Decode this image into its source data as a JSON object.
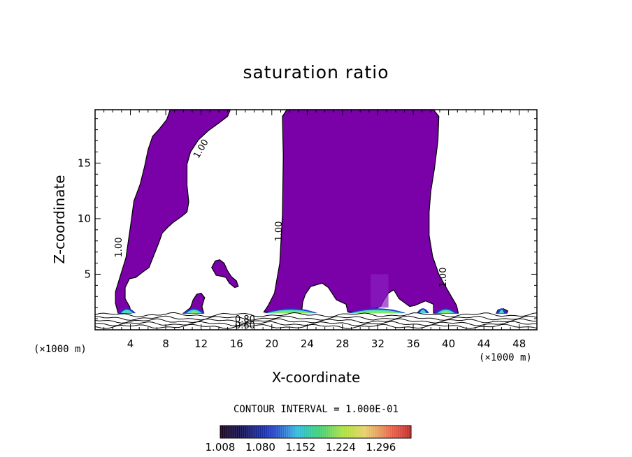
{
  "chart_data": {
    "type": "contour",
    "title": "saturation ratio",
    "xlabel": "X-coordinate",
    "ylabel": "Z-coordinate",
    "x_unit_label": "(×1000 m)",
    "x_unit_label_right": "(×1000 m)",
    "xlim": [
      0,
      50
    ],
    "ylim": [
      0,
      19.8
    ],
    "x_ticks": [
      4,
      8,
      12,
      16,
      20,
      24,
      28,
      32,
      36,
      40,
      44,
      48
    ],
    "y_ticks": [
      5,
      10,
      15
    ],
    "contour_interval_text": "CONTOUR INTERVAL = 1.000E-01",
    "contour_labels": [
      "1.00",
      "1.00",
      "1.00",
      "1.00",
      "0.80",
      "0.60"
    ],
    "colorbar": {
      "tick_labels": [
        "1.008",
        "1.080",
        "1.152",
        "1.224",
        "1.296"
      ],
      "min": 1.008,
      "max": 1.35
    },
    "colors": {
      "fill": "#7a00a8",
      "hot_band": "#49d9c6",
      "hot_core": "#7fe86a",
      "low_edge": "#2335c8"
    },
    "regions": [
      {
        "name": "left-plume",
        "shape": [
          [
            8.5,
            19.8
          ],
          [
            15.3,
            19.8
          ],
          [
            15.0,
            19.2
          ],
          [
            14.0,
            18.6
          ],
          [
            12.8,
            17.9
          ],
          [
            11.7,
            17.1
          ],
          [
            10.8,
            16.0
          ],
          [
            10.4,
            14.9
          ],
          [
            10.4,
            13.0
          ],
          [
            10.6,
            11.5
          ],
          [
            10.4,
            10.6
          ],
          [
            9.8,
            10.2
          ],
          [
            8.9,
            9.7
          ],
          [
            8.2,
            9.2
          ],
          [
            7.6,
            8.7
          ],
          [
            7.2,
            7.8
          ],
          [
            6.6,
            6.6
          ],
          [
            6.1,
            5.6
          ],
          [
            5.4,
            5.2
          ],
          [
            4.6,
            4.7
          ],
          [
            3.9,
            4.6
          ],
          [
            3.4,
            3.8
          ],
          [
            3.4,
            2.8
          ],
          [
            3.9,
            2.1
          ],
          [
            4.1,
            1.5
          ],
          [
            2.6,
            1.5
          ],
          [
            2.3,
            2.4
          ],
          [
            2.3,
            3.4
          ],
          [
            2.8,
            4.7
          ],
          [
            3.5,
            6.5
          ],
          [
            4.0,
            9.3
          ],
          [
            4.4,
            11.6
          ],
          [
            5.1,
            13.1
          ],
          [
            5.6,
            14.7
          ],
          [
            6.0,
            16.2
          ],
          [
            6.5,
            17.4
          ],
          [
            7.3,
            18.1
          ],
          [
            8.1,
            18.9
          ]
        ]
      },
      {
        "name": "central-plume",
        "shape": [
          [
            21.2,
            19.2
          ],
          [
            21.7,
            19.8
          ],
          [
            38.3,
            19.8
          ],
          [
            38.9,
            19.2
          ],
          [
            38.8,
            17.0
          ],
          [
            38.4,
            14.5
          ],
          [
            38.0,
            12.5
          ],
          [
            37.8,
            10.6
          ],
          [
            37.8,
            8.5
          ],
          [
            38.2,
            6.6
          ],
          [
            38.9,
            5.0
          ],
          [
            39.8,
            3.7
          ],
          [
            40.9,
            2.2
          ],
          [
            41.1,
            1.5
          ],
          [
            38.3,
            1.5
          ],
          [
            38.3,
            2.3
          ],
          [
            37.4,
            2.6
          ],
          [
            36.2,
            2.2
          ],
          [
            35.6,
            2.1
          ],
          [
            34.4,
            2.8
          ],
          [
            33.8,
            3.6
          ],
          [
            33.2,
            3.3
          ],
          [
            32.7,
            2.7
          ],
          [
            32.3,
            2.1
          ],
          [
            31.5,
            1.8
          ],
          [
            30.8,
            1.6
          ],
          [
            28.6,
            1.6
          ],
          [
            28.4,
            2.3
          ],
          [
            27.3,
            2.7
          ],
          [
            26.4,
            3.8
          ],
          [
            25.7,
            4.2
          ],
          [
            24.4,
            3.9
          ],
          [
            23.8,
            3.2
          ],
          [
            23.5,
            2.5
          ],
          [
            23.4,
            1.8
          ],
          [
            22.0,
            1.6
          ],
          [
            19.1,
            1.6
          ],
          [
            19.6,
            2.2
          ],
          [
            20.3,
            3.3
          ],
          [
            20.9,
            6.0
          ],
          [
            21.2,
            10.4
          ],
          [
            21.3,
            15.6
          ]
        ]
      },
      {
        "name": "small-cloud-a",
        "shape": [
          [
            12.1,
            2.1
          ],
          [
            12.4,
            2.9
          ],
          [
            12.0,
            3.3
          ],
          [
            11.5,
            3.2
          ],
          [
            11.1,
            2.7
          ],
          [
            10.8,
            2.0
          ],
          [
            10.0,
            1.5
          ],
          [
            12.3,
            1.5
          ]
        ]
      },
      {
        "name": "small-cloud-b",
        "shape": [
          [
            13.2,
            5.6
          ],
          [
            13.6,
            6.2
          ],
          [
            14.1,
            6.3
          ],
          [
            14.6,
            6.0
          ],
          [
            15.0,
            5.3
          ],
          [
            15.4,
            4.8
          ],
          [
            16.0,
            4.4
          ],
          [
            16.2,
            3.9
          ],
          [
            15.8,
            3.8
          ],
          [
            15.2,
            4.2
          ],
          [
            14.8,
            4.7
          ],
          [
            14.4,
            4.8
          ],
          [
            13.7,
            4.9
          ]
        ]
      },
      {
        "name": "speck-46",
        "shape": [
          [
            45.4,
            1.5
          ],
          [
            45.6,
            1.8
          ],
          [
            46.2,
            1.9
          ],
          [
            46.7,
            1.7
          ],
          [
            46.6,
            1.5
          ]
        ]
      }
    ],
    "low_level_contours": [
      0.6,
      0.7,
      0.8,
      0.9
    ]
  }
}
